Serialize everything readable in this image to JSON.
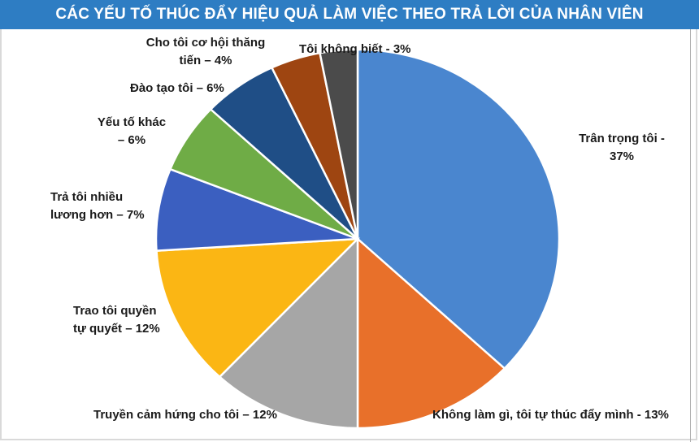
{
  "title": "CÁC YẾU TỐ THÚC ĐẨY HIỆU QUẢ LÀM VIỆC THEO TRẢ LỜI CỦA NHÂN VIÊN",
  "colors": {
    "title_bg": "#2e7dc3",
    "title_text": "#ffffff"
  },
  "chart_data": {
    "type": "pie",
    "title": "CÁC YẾU TỐ THÚC ĐẨY HIỆU QUẢ LÀM VIỆC THEO TRẢ LỜI CỦA NHÂN VIÊN",
    "start": "12 o'clock, clockwise",
    "slices": [
      {
        "label_lines": [
          "Trân trọng tôi -",
          "37%"
        ],
        "value": 37,
        "color": "#4a86cf"
      },
      {
        "label_lines": [
          "Không làm gì, tôi tự thúc đẩy mình - 13%"
        ],
        "value": 13,
        "color": "#e8702a"
      },
      {
        "label_lines": [
          "Truyền cảm hứng cho tôi – 12%"
        ],
        "value": 12,
        "color": "#a6a6a6"
      },
      {
        "label_lines": [
          "Trao tôi quyền",
          "tự quyết – 12%"
        ],
        "value": 12,
        "color": "#fbb614"
      },
      {
        "label_lines": [
          "Trả tôi nhiều",
          "lương hơn – 7%"
        ],
        "value": 7,
        "color": "#3b5fc0"
      },
      {
        "label_lines": [
          "Yếu tố khác",
          "– 6%"
        ],
        "value": 6,
        "color": "#6fac46"
      },
      {
        "label_lines": [
          "Đào tạo tôi – 6%"
        ],
        "value": 6,
        "color": "#1f4e86"
      },
      {
        "label_lines": [
          "Cho tôi cơ hội thăng",
          "tiến – 4%"
        ],
        "value": 4,
        "color": "#9e4511"
      },
      {
        "label_lines": [
          "Tôi không biết - 3%"
        ],
        "value": 3,
        "color": "#4b4b4b"
      }
    ]
  }
}
